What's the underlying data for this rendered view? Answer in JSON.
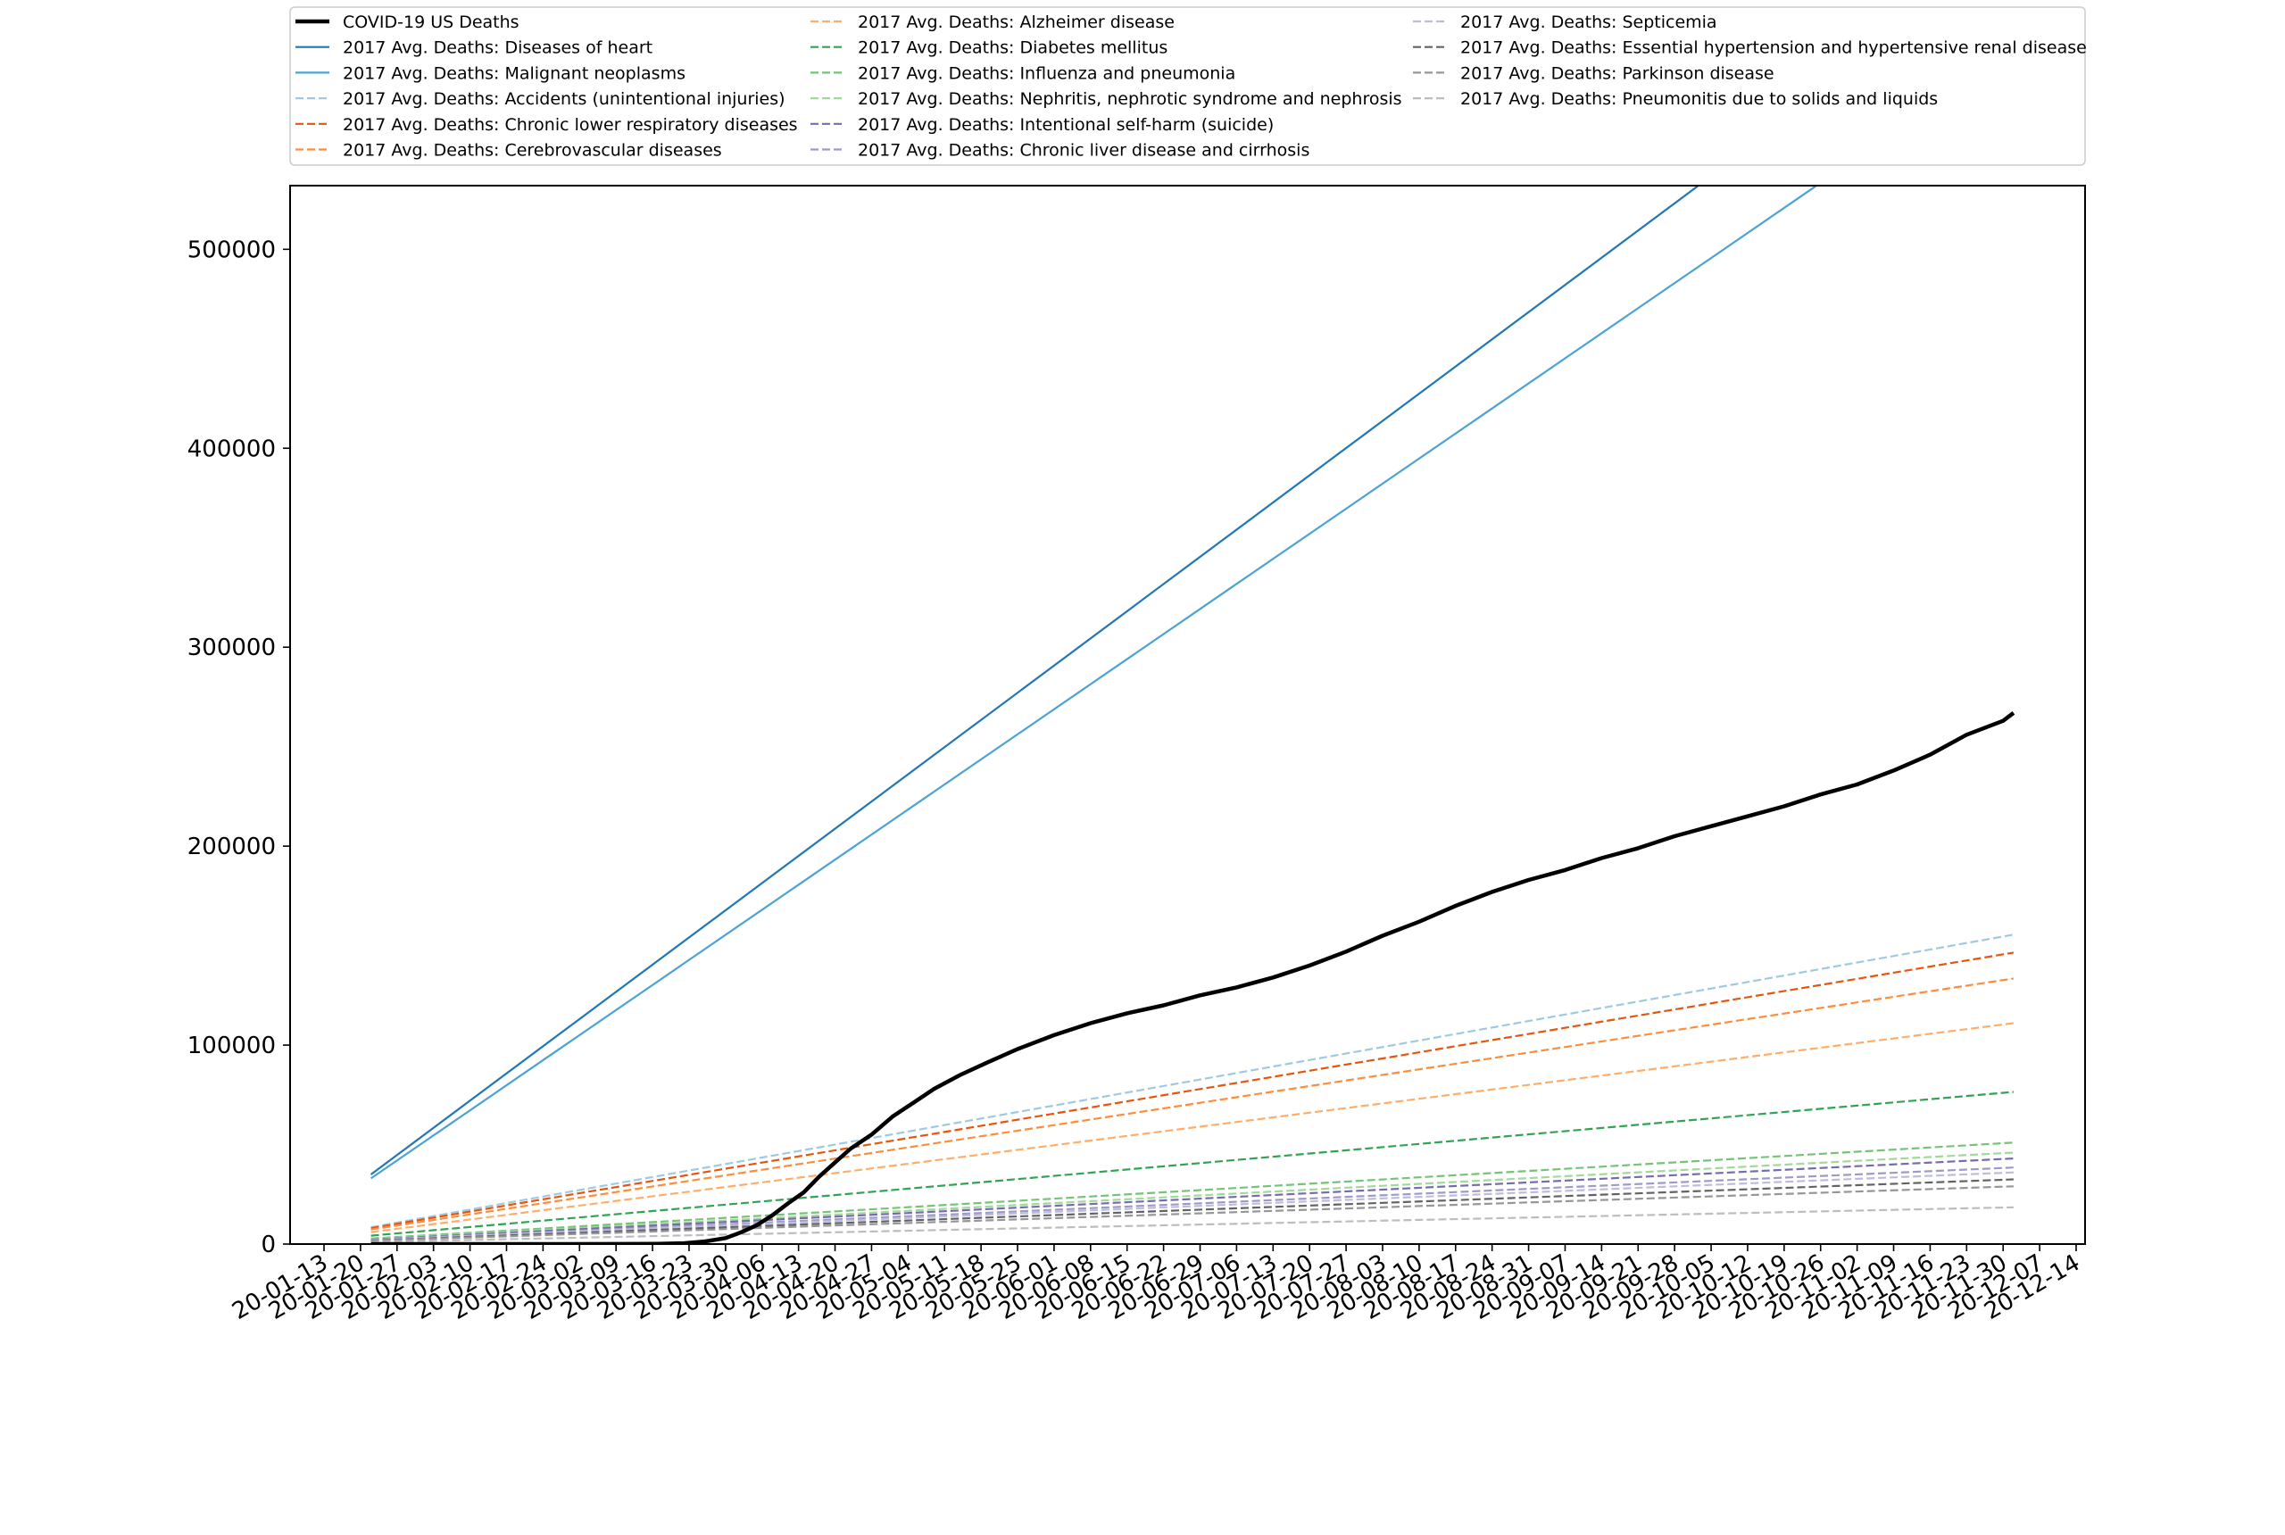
{
  "chart_data": {
    "type": "line",
    "title": "",
    "xlabel": "",
    "ylabel": "",
    "x_range": [
      "2020-01-13",
      "2020-12-14"
    ],
    "ylim": [
      0,
      532000
    ],
    "grid": false,
    "legend_placement": "top",
    "x_ticks": [
      "20-01-13",
      "20-01-20",
      "20-01-27",
      "20-02-03",
      "20-02-10",
      "20-02-17",
      "20-02-24",
      "20-03-02",
      "20-03-09",
      "20-03-16",
      "20-03-23",
      "20-03-30",
      "20-04-06",
      "20-04-13",
      "20-04-20",
      "20-04-27",
      "20-05-04",
      "20-05-11",
      "20-05-18",
      "20-05-25",
      "20-06-01",
      "20-06-08",
      "20-06-15",
      "20-06-22",
      "20-06-29",
      "20-07-06",
      "20-07-13",
      "20-07-20",
      "20-07-27",
      "20-08-03",
      "20-08-10",
      "20-08-17",
      "20-08-24",
      "20-08-31",
      "20-09-07",
      "20-09-14",
      "20-09-21",
      "20-09-28",
      "20-10-05",
      "20-10-12",
      "20-10-19",
      "20-10-26",
      "20-11-02",
      "20-11-09",
      "20-11-16",
      "20-11-23",
      "20-11-30",
      "20-12-07",
      "20-12-14"
    ],
    "y_ticks": [
      0,
      100000,
      200000,
      300000,
      400000,
      500000
    ],
    "series": [
      {
        "name": "COVID-19 US Deaths",
        "color": "#000000",
        "style": "solid",
        "width": 4.5,
        "points": [
          [
            "2020-01-22",
            0
          ],
          [
            "2020-02-29",
            1
          ],
          [
            "2020-03-10",
            30
          ],
          [
            "2020-03-17",
            100
          ],
          [
            "2020-03-22",
            400
          ],
          [
            "2020-03-26",
            1300
          ],
          [
            "2020-03-30",
            3000
          ],
          [
            "2020-04-02",
            5900
          ],
          [
            "2020-04-05",
            9500
          ],
          [
            "2020-04-08",
            14500
          ],
          [
            "2020-04-11",
            20500
          ],
          [
            "2020-04-14",
            26000
          ],
          [
            "2020-04-17",
            34000
          ],
          [
            "2020-04-20",
            41000
          ],
          [
            "2020-04-23",
            48000
          ],
          [
            "2020-04-27",
            55000
          ],
          [
            "2020-05-01",
            64000
          ],
          [
            "2020-05-05",
            71000
          ],
          [
            "2020-05-09",
            78000
          ],
          [
            "2020-05-14",
            85000
          ],
          [
            "2020-05-19",
            91000
          ],
          [
            "2020-05-25",
            98000
          ],
          [
            "2020-06-01",
            105000
          ],
          [
            "2020-06-08",
            111000
          ],
          [
            "2020-06-15",
            116000
          ],
          [
            "2020-06-22",
            120000
          ],
          [
            "2020-06-29",
            125000
          ],
          [
            "2020-07-06",
            129000
          ],
          [
            "2020-07-13",
            134000
          ],
          [
            "2020-07-20",
            140000
          ],
          [
            "2020-07-27",
            147000
          ],
          [
            "2020-08-03",
            155000
          ],
          [
            "2020-08-10",
            162000
          ],
          [
            "2020-08-17",
            170000
          ],
          [
            "2020-08-24",
            177000
          ],
          [
            "2020-08-31",
            183000
          ],
          [
            "2020-09-07",
            188000
          ],
          [
            "2020-09-14",
            194000
          ],
          [
            "2020-09-21",
            199000
          ],
          [
            "2020-09-28",
            205000
          ],
          [
            "2020-10-05",
            210000
          ],
          [
            "2020-10-12",
            215000
          ],
          [
            "2020-10-19",
            220000
          ],
          [
            "2020-10-26",
            226000
          ],
          [
            "2020-11-02",
            231000
          ],
          [
            "2020-11-09",
            238000
          ],
          [
            "2020-11-16",
            246000
          ],
          [
            "2020-11-23",
            256000
          ],
          [
            "2020-11-30",
            263000
          ],
          [
            "2020-12-02",
            267000
          ]
        ]
      },
      {
        "name": "2017 Avg. Deaths: Diseases of heart",
        "color": "#1f77b4",
        "style": "solid",
        "width": 2.2,
        "points": [
          [
            "2020-01-22",
            35000
          ],
          [
            "2020-12-02",
            650000
          ]
        ]
      },
      {
        "name": "2017 Avg. Deaths: Malignant neoplasms",
        "color": "#4ba3d3",
        "style": "solid",
        "width": 2.2,
        "points": [
          [
            "2020-01-22",
            33000
          ],
          [
            "2020-12-02",
            600000
          ]
        ]
      },
      {
        "name": "2017 Avg. Deaths: Accidents (unintentional injuries)",
        "color": "#9ecae1",
        "style": "dashed",
        "width": 2.2,
        "points": [
          [
            "2020-01-22",
            8500
          ],
          [
            "2020-12-02",
            155500
          ]
        ]
      },
      {
        "name": "2017 Avg. Deaths: Chronic lower respiratory diseases",
        "color": "#e6550d",
        "style": "dashed",
        "width": 2.2,
        "points": [
          [
            "2020-01-22",
            8000
          ],
          [
            "2020-12-02",
            146500
          ]
        ]
      },
      {
        "name": "2017 Avg. Deaths: Cerebrovascular diseases",
        "color": "#fd8d3c",
        "style": "dashed",
        "width": 2.2,
        "points": [
          [
            "2020-01-22",
            7300
          ],
          [
            "2020-12-02",
            133500
          ]
        ]
      },
      {
        "name": "2017 Avg. Deaths: Alzheimer disease",
        "color": "#fdae6b",
        "style": "dashed",
        "width": 2.2,
        "points": [
          [
            "2020-01-22",
            6000
          ],
          [
            "2020-12-02",
            111000
          ]
        ]
      },
      {
        "name": "2017 Avg. Deaths: Diabetes mellitus",
        "color": "#31a354",
        "style": "dashed",
        "width": 2.2,
        "points": [
          [
            "2020-01-22",
            4200
          ],
          [
            "2020-12-02",
            76500
          ]
        ]
      },
      {
        "name": "2017 Avg. Deaths: Influenza and pneumonia",
        "color": "#74c476",
        "style": "dashed",
        "width": 2.2,
        "points": [
          [
            "2020-01-22",
            2800
          ],
          [
            "2020-12-02",
            51000
          ]
        ]
      },
      {
        "name": "2017 Avg. Deaths: Nephritis, nephrotic syndrome and nephrosis",
        "color": "#a1d99b",
        "style": "dashed",
        "width": 2.2,
        "points": [
          [
            "2020-01-22",
            2500
          ],
          [
            "2020-12-02",
            46000
          ]
        ]
      },
      {
        "name": "2017 Avg. Deaths: Intentional self-harm (suicide)",
        "color": "#756bb1",
        "style": "dashed",
        "width": 2.2,
        "points": [
          [
            "2020-01-22",
            2300
          ],
          [
            "2020-12-02",
            43000
          ]
        ]
      },
      {
        "name": "2017 Avg. Deaths: Chronic liver disease and cirrhosis",
        "color": "#9e9ac8",
        "style": "dashed",
        "width": 2.2,
        "points": [
          [
            "2020-01-22",
            2100
          ],
          [
            "2020-12-02",
            38500
          ]
        ]
      },
      {
        "name": "2017 Avg. Deaths: Septicemia",
        "color": "#bcbddc",
        "style": "dashed",
        "width": 2.2,
        "points": [
          [
            "2020-01-22",
            2000
          ],
          [
            "2020-12-02",
            36000
          ]
        ]
      },
      {
        "name": "2017 Avg. Deaths: Essential hypertension and hypertensive renal disease",
        "color": "#636363",
        "style": "dashed",
        "width": 2.2,
        "points": [
          [
            "2020-01-22",
            1800
          ],
          [
            "2020-12-02",
            32500
          ]
        ]
      },
      {
        "name": "2017 Avg. Deaths: Parkinson disease",
        "color": "#969696",
        "style": "dashed",
        "width": 2.2,
        "points": [
          [
            "2020-01-22",
            1600
          ],
          [
            "2020-12-02",
            29000
          ]
        ]
      },
      {
        "name": "2017 Avg. Deaths: Pneumonitis due to solids and liquids",
        "color": "#bdbdbd",
        "style": "dashed",
        "width": 2.2,
        "points": [
          [
            "2020-01-22",
            1000
          ],
          [
            "2020-12-02",
            18500
          ]
        ]
      }
    ]
  }
}
